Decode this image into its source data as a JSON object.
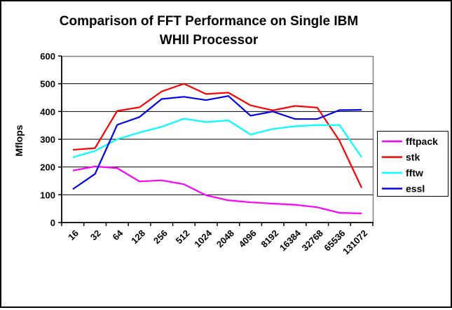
{
  "title": {
    "line1": "Comparison of FFT Performance on Single IBM",
    "line2": "WHII Processor"
  },
  "chart_data": {
    "type": "line",
    "title": "Comparison of FFT Performance on Single IBM WHII Processor",
    "xlabel": "",
    "ylabel": "Mflops",
    "ylim": [
      0,
      600
    ],
    "yticks": [
      0,
      100,
      200,
      300,
      400,
      500,
      600
    ],
    "grid": true,
    "legend_position": "right",
    "categories": [
      "16",
      "32",
      "64",
      "128",
      "256",
      "512",
      "1024",
      "2048",
      "4096",
      "8192",
      "16384",
      "32768",
      "65536",
      "131072"
    ],
    "series": [
      {
        "name": "fftpack",
        "color": "#FF00FF",
        "values": [
          187,
          202,
          196,
          148,
          152,
          138,
          98,
          80,
          73,
          68,
          64,
          55,
          35,
          33
        ]
      },
      {
        "name": "stk",
        "color": "#FF0000",
        "values": [
          262,
          268,
          402,
          415,
          472,
          500,
          463,
          468,
          422,
          404,
          420,
          414,
          295,
          125
        ]
      },
      {
        "name": "fftw",
        "color": "#00FFFF",
        "values": [
          235,
          258,
          300,
          324,
          345,
          374,
          362,
          368,
          317,
          337,
          347,
          351,
          351,
          235
        ]
      },
      {
        "name": "essl",
        "color": "#0000EE",
        "values": [
          120,
          175,
          352,
          380,
          445,
          453,
          441,
          456,
          385,
          400,
          373,
          373,
          405,
          406
        ]
      }
    ],
    "colors": {
      "gridline": "#000000",
      "plot_border": "#808080",
      "axis": "#000000",
      "background": "#FFFFFF"
    }
  }
}
